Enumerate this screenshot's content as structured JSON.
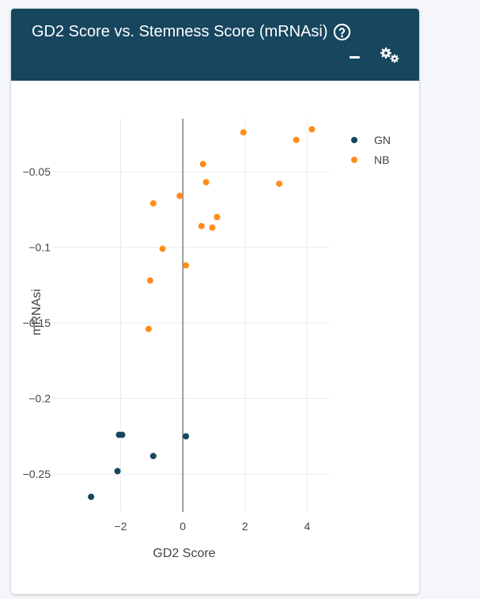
{
  "card": {
    "title": "GD2 Score vs. Stemness Score (mRNAsi)"
  },
  "icons": {
    "help": "question-circle-icon",
    "minimize": "minus-icon",
    "settings": "gears-icon"
  },
  "colors": {
    "header": "#17465f",
    "GN": "#17465f",
    "NB": "#ff8c1a"
  },
  "chart_data": {
    "type": "scatter",
    "xlabel": "GD2 Score",
    "ylabel": "mRNAsi",
    "xlim": [
      -4.2,
      4.7
    ],
    "ylim": [
      -0.275,
      -0.015
    ],
    "x_ticks": [
      -2,
      0,
      2,
      4
    ],
    "x_tick_labels": [
      "−2",
      "0",
      "2",
      "4"
    ],
    "y_ticks": [
      -0.05,
      -0.1,
      -0.15,
      -0.2,
      -0.25
    ],
    "y_tick_labels": [
      "−0.05",
      "−0.1",
      "−0.15",
      "−0.2",
      "−0.25"
    ],
    "grid": true,
    "zero_line_x": true,
    "legend": "top-right",
    "series": [
      {
        "name": "GN",
        "points": [
          {
            "x": -2.05,
            "y": -0.224
          },
          {
            "x": -1.95,
            "y": -0.224
          },
          {
            "x": 0.1,
            "y": -0.225
          },
          {
            "x": -0.95,
            "y": -0.238
          },
          {
            "x": -2.1,
            "y": -0.248
          },
          {
            "x": -2.95,
            "y": -0.265
          }
        ]
      },
      {
        "name": "NB",
        "points": [
          {
            "x": 4.15,
            "y": -0.022
          },
          {
            "x": 1.95,
            "y": -0.024
          },
          {
            "x": 3.65,
            "y": -0.029
          },
          {
            "x": 0.65,
            "y": -0.045
          },
          {
            "x": 0.75,
            "y": -0.057
          },
          {
            "x": 3.1,
            "y": -0.058
          },
          {
            "x": -0.1,
            "y": -0.066
          },
          {
            "x": -0.95,
            "y": -0.071
          },
          {
            "x": 1.1,
            "y": -0.08
          },
          {
            "x": 0.6,
            "y": -0.086
          },
          {
            "x": 0.95,
            "y": -0.087
          },
          {
            "x": -0.65,
            "y": -0.101
          },
          {
            "x": 0.1,
            "y": -0.112
          },
          {
            "x": -1.05,
            "y": -0.122
          },
          {
            "x": -1.1,
            "y": -0.154
          }
        ]
      }
    ]
  }
}
